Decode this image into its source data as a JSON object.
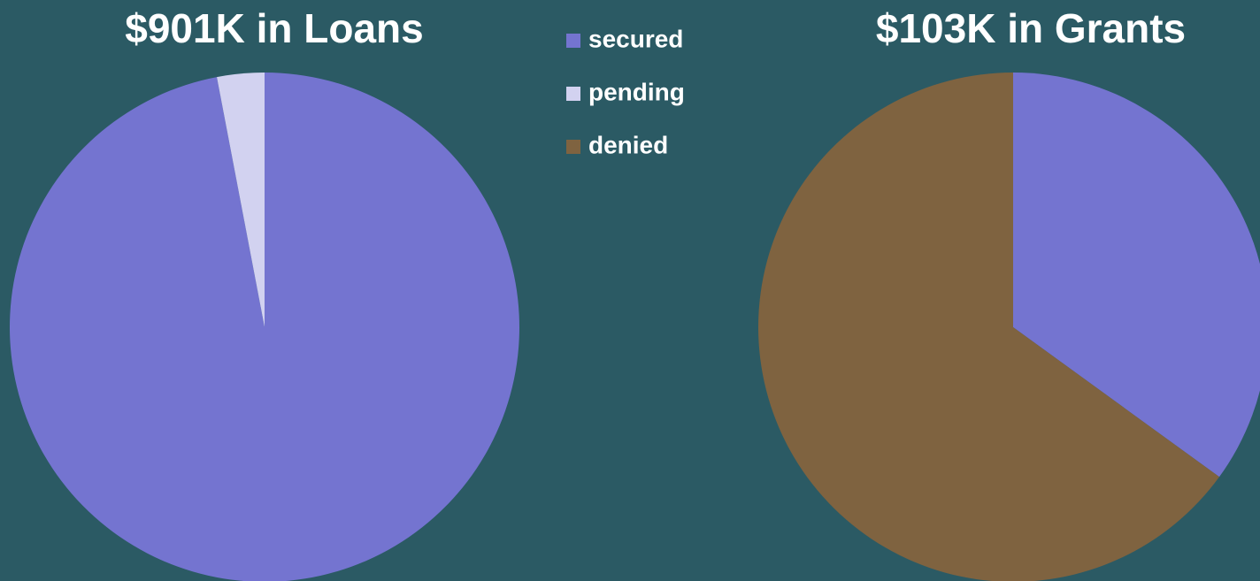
{
  "chart_data": [
    {
      "type": "pie",
      "title": "$901K in Loans",
      "categories": [
        "secured",
        "pending",
        "denied"
      ],
      "values": [
        97,
        3,
        0
      ],
      "colors": [
        "#7474d0",
        "#d2d2f0",
        "#7f6340"
      ]
    },
    {
      "type": "pie",
      "title": "$103K in Grants",
      "categories": [
        "secured",
        "pending",
        "denied"
      ],
      "values": [
        35,
        0,
        65
      ],
      "colors": [
        "#7474d0",
        "#d2d2f0",
        "#7f6340"
      ]
    }
  ]
}
